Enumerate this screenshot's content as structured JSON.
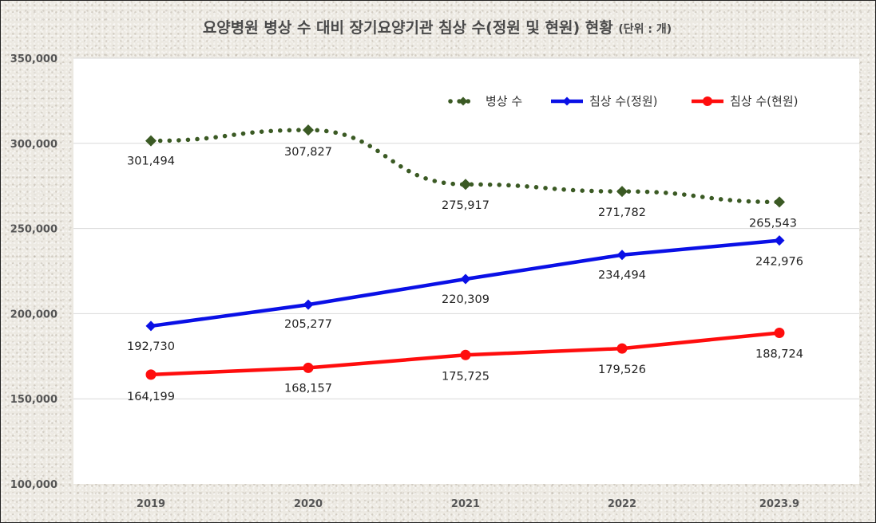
{
  "title": "요양병원 병상 수 대비 장기요양기관 침상 수(정원 및 현원) 현황",
  "title_unit": "(단위 : 개)",
  "chart_data": {
    "type": "line",
    "categories": [
      "2019",
      "2020",
      "2021",
      "2022",
      "2023.9"
    ],
    "ylim": [
      100000,
      350000
    ],
    "yticks": [
      100000,
      150000,
      200000,
      250000,
      300000,
      350000
    ],
    "ytick_labels": [
      "100,000",
      "150,000",
      "200,000",
      "250,000",
      "300,000",
      "350,000"
    ],
    "grid": true,
    "legend_position": "top-right",
    "series": [
      {
        "name": "병상 수",
        "color": "#3b5a24",
        "style": "dotted",
        "marker": "diamond",
        "values": [
          301494,
          307827,
          275917,
          271782,
          265543
        ],
        "labels": [
          "301,494",
          "307,827",
          "275,917",
          "271,782",
          "265,543"
        ]
      },
      {
        "name": "침상 수(정원)",
        "color": "#0a10e6",
        "style": "solid",
        "marker": "diamond",
        "values": [
          192730,
          205277,
          220309,
          234494,
          242976
        ],
        "labels": [
          "192,730",
          "205,277",
          "220,309",
          "234,494",
          "242,976"
        ]
      },
      {
        "name": "침상 수(현원)",
        "color": "#ff0d0d",
        "style": "solid",
        "marker": "circle",
        "values": [
          164199,
          168157,
          175725,
          179526,
          188724
        ],
        "labels": [
          "164,199",
          "168,157",
          "175,725",
          "179,526",
          "188,724"
        ]
      }
    ]
  }
}
